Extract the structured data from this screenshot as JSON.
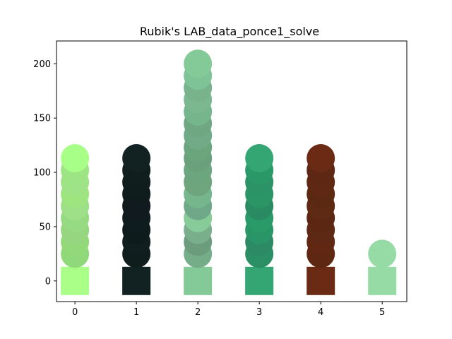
{
  "chart_data": {
    "type": "scatter",
    "title": "Rubik's LAB_data_ponce1_solve",
    "xlabel": "",
    "ylabel": "",
    "xlim": [
      -0.3,
      5.4
    ],
    "ylim": [
      -19,
      221
    ],
    "x_ticks": [
      "0",
      "1",
      "2",
      "3",
      "4",
      "5"
    ],
    "y_ticks": [
      "0",
      "50",
      "100",
      "150",
      "200"
    ],
    "grid": false,
    "legend": "none",
    "markers": {
      "square_y": 0,
      "circle_ys_by_column": {
        "0": [
          25,
          36,
          47,
          58,
          69,
          80,
          91,
          102,
          113
        ],
        "1": [
          25,
          36,
          47,
          58,
          69,
          80,
          91,
          102,
          113
        ],
        "2": [
          25,
          36,
          47,
          58,
          69,
          80,
          91,
          102,
          113,
          123,
          134,
          145,
          156,
          167,
          178,
          189,
          200
        ],
        "3": [
          25,
          36,
          47,
          58,
          69,
          80,
          91,
          102,
          113
        ],
        "4": [
          25,
          36,
          47,
          58,
          69,
          80,
          91,
          102,
          113
        ],
        "5": [
          25
        ]
      }
    },
    "series": [
      {
        "x": 0,
        "square_color": "#aaff88",
        "circle_colors": [
          "#8fd97a",
          "#93d97a",
          "#96d680",
          "#97da84",
          "#9de088",
          "#9ee57f",
          "#9fe387",
          "#9de484",
          "#a8ff88"
        ]
      },
      {
        "x": 1,
        "square_color": "#122222",
        "circle_colors": [
          "#0f1d1d",
          "#101e1f",
          "#0e1b1d",
          "#0f1c1f",
          "#101a1f",
          "#0f1b1c",
          "#101d1d",
          "#101e1e",
          "#122222"
        ]
      },
      {
        "x": 2,
        "square_color": "#84c998",
        "circle_colors": [
          "#74ad88",
          "#6b9c7c",
          "#7aaf8c",
          "#87cb99",
          "#6fa888",
          "#76b68d",
          "#6ea57d",
          "#6ca67e",
          "#6aa07b",
          "#6ba57b",
          "#71aa86",
          "#6fa783",
          "#76b68d",
          "#7cb88f",
          "#78b38c",
          "#7ec395",
          "#84c998"
        ]
      },
      {
        "x": 3,
        "square_color": "#33a673",
        "circle_colors": [
          "#2a8f63",
          "#2c8a64",
          "#2a9566",
          "#2a9a68",
          "#2a8a62",
          "#2b9566",
          "#2b9366",
          "#2b9967",
          "#33a673"
        ]
      },
      {
        "x": 4,
        "square_color": "#6b2a14",
        "circle_colors": [
          "#5e2712",
          "#622713",
          "#5d2814",
          "#5b2713",
          "#5e2a14",
          "#5b2812",
          "#5f2813",
          "#5e2714",
          "#6b2a14"
        ]
      },
      {
        "x": 5,
        "square_color": "#96dba6",
        "circle_colors": [
          "#96dba6"
        ]
      }
    ]
  }
}
